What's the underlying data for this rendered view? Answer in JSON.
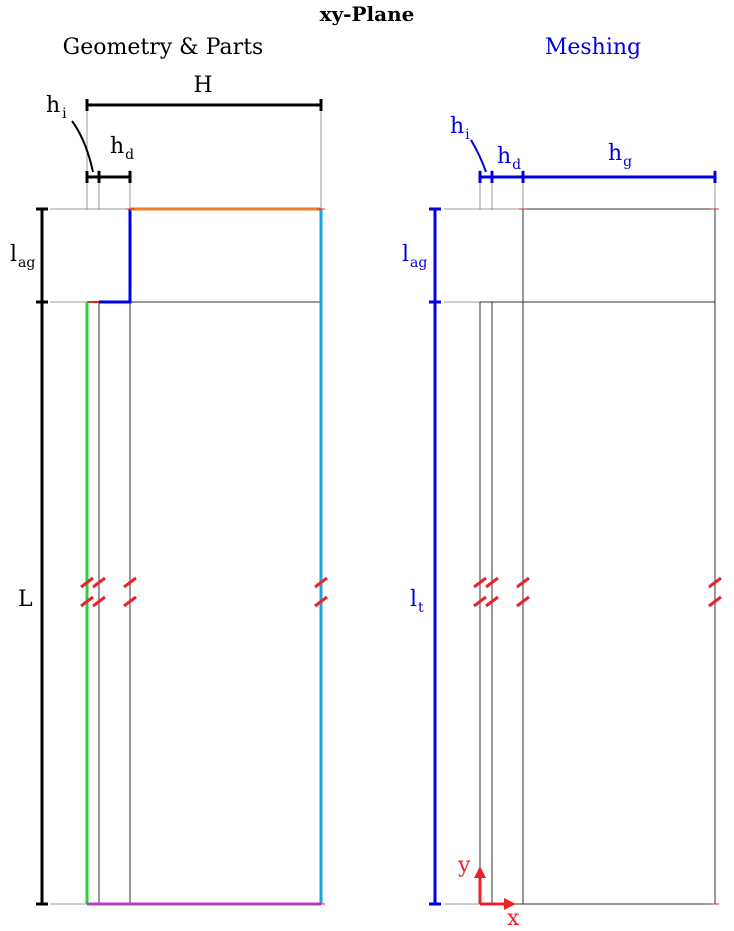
{
  "title": "xy-Plane",
  "left_panel": {
    "heading": "Geometry & Parts",
    "dimensions": {
      "H": "H",
      "hi_main": "h",
      "hi_sub": "i",
      "hd_main": "h",
      "hd_sub": "d",
      "lag_main": "l",
      "lag_sub": "ag",
      "L": "L"
    }
  },
  "right_panel": {
    "heading": "Meshing",
    "dimensions": {
      "hi_main": "h",
      "hi_sub": "i",
      "hd_main": "h",
      "hd_sub": "d",
      "hg_main": "h",
      "hg_sub": "g",
      "lag_main": "l",
      "lag_sub": "ag",
      "lt_main": "l",
      "lt_sub": "t"
    },
    "axes": {
      "x": "x",
      "y": "y"
    }
  },
  "colors": {
    "black": "#000000",
    "blue": "#0000e0",
    "red": "#e8242a",
    "green": "#2ecc40",
    "cyan": "#1aa3df",
    "orange": "#f07a2a",
    "purple": "#b040c0",
    "grey_line": "#333333",
    "thin_line": "#999999"
  }
}
